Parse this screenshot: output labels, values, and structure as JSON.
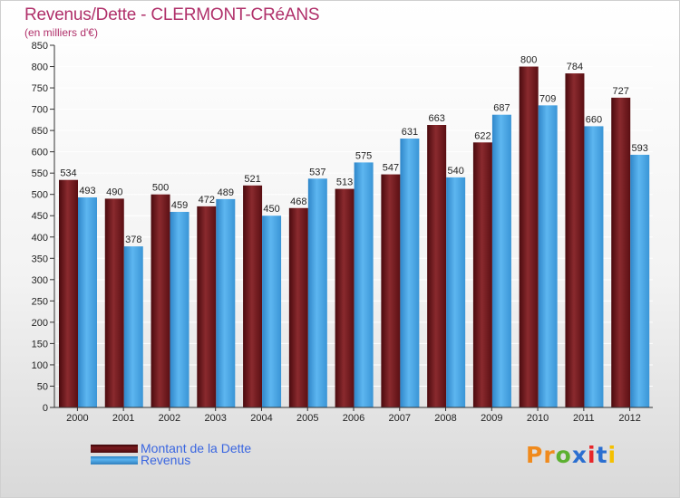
{
  "header": {
    "title": "Revenus/Dette - CLERMONT-CRéANS",
    "subtitle": "(en milliers d'€)"
  },
  "colors": {
    "dette": "#7a1a1e",
    "revenus": "#4aa3e4",
    "title": "#b0306a",
    "legend_text": "#3a66e0",
    "grid": "#ffffff",
    "axis": "#333333"
  },
  "chart_data": {
    "type": "bar",
    "title": "Revenus/Dette - CLERMONT-CRéANS",
    "ylabel": "(en milliers d'€)",
    "xlabel": "",
    "categories": [
      "2000",
      "2001",
      "2002",
      "2003",
      "2004",
      "2005",
      "2006",
      "2007",
      "2008",
      "2009",
      "2010",
      "2011",
      "2012"
    ],
    "series": [
      {
        "name": "Montant de la Dette",
        "color": "#7a1a1e",
        "values": [
          534,
          490,
          500,
          472,
          521,
          468,
          513,
          547,
          663,
          622,
          800,
          784,
          727
        ]
      },
      {
        "name": "Revenus",
        "color": "#4aa3e4",
        "values": [
          493,
          378,
          459,
          489,
          450,
          537,
          575,
          631,
          540,
          687,
          709,
          660,
          593
        ]
      }
    ],
    "ylim": [
      0,
      850
    ],
    "ytick_step": 50,
    "grid": true,
    "legend_position": "bottom-left"
  },
  "legend": [
    {
      "label": "Montant de la Dette",
      "color": "#7a1a1e"
    },
    {
      "label": "Revenus",
      "color": "#4aa3e4"
    }
  ],
  "logo": {
    "text": "Proxiti",
    "letters": [
      "P",
      "r",
      "o",
      "x",
      "i",
      "t",
      "i"
    ],
    "colors": [
      "#f08a1c",
      "#f08a1c",
      "#5cb030",
      "#2a6ed0",
      "#e8262a",
      "#2a6ed0",
      "#f5c000"
    ]
  }
}
